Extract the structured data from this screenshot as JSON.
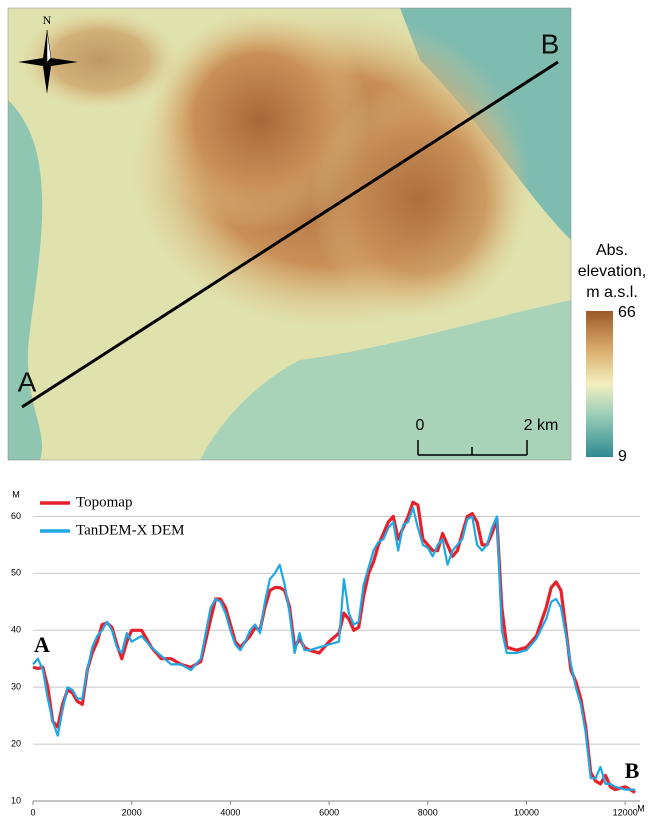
{
  "map": {
    "north": "N",
    "point_a": "A",
    "point_b": "B",
    "legend_title": [
      "Abs.",
      "elevation,",
      "m a.s.l."
    ],
    "legend_max": "66",
    "legend_min": "9",
    "scale_labels": [
      "0",
      "2 km"
    ]
  },
  "chart_data": {
    "type": "line",
    "x": [
      0,
      100,
      200,
      300,
      400,
      500,
      600,
      700,
      800,
      900,
      1000,
      1100,
      1200,
      1300,
      1400,
      1500,
      1600,
      1700,
      1800,
      1900,
      2000,
      2200,
      2400,
      2600,
      2800,
      3000,
      3200,
      3400,
      3600,
      3700,
      3800,
      3900,
      4000,
      4100,
      4200,
      4300,
      4400,
      4500,
      4600,
      4700,
      4800,
      4900,
      5000,
      5100,
      5200,
      5300,
      5400,
      5500,
      5600,
      5800,
      6000,
      6200,
      6300,
      6400,
      6500,
      6600,
      6700,
      6800,
      6900,
      7000,
      7100,
      7200,
      7300,
      7400,
      7500,
      7600,
      7700,
      7800,
      7900,
      8000,
      8100,
      8200,
      8300,
      8400,
      8500,
      8600,
      8700,
      8800,
      8900,
      9000,
      9100,
      9200,
      9300,
      9400,
      9500,
      9600,
      9800,
      10000,
      10200,
      10400,
      10500,
      10600,
      10700,
      10800,
      10900,
      11000,
      11100,
      11200,
      11300,
      11400,
      11500,
      11600,
      11700,
      11800,
      12000,
      12200
    ],
    "series": [
      {
        "name": "Topomap",
        "color": "#e8202a",
        "values": [
          33.5,
          33.3,
          33.5,
          30,
          24,
          23,
          27,
          29.5,
          29,
          27.5,
          27,
          33,
          36,
          38,
          41,
          41.3,
          40.5,
          37.5,
          35,
          38,
          40,
          40,
          37,
          35,
          35,
          34,
          33.5,
          34.5,
          42,
          45.5,
          45.5,
          44,
          41,
          38,
          37,
          38,
          39,
          40.5,
          40,
          44,
          47,
          47.5,
          47.5,
          47,
          44,
          37,
          38.5,
          37,
          36.5,
          36,
          38,
          39.5,
          43,
          42,
          40,
          40.5,
          46,
          50,
          52,
          55,
          57,
          59,
          60,
          56,
          58,
          60,
          62.5,
          62,
          56,
          55,
          54,
          54,
          57,
          55,
          53,
          54,
          57,
          60,
          60.5,
          59,
          55,
          55,
          57,
          59.5,
          44,
          37,
          36.5,
          37,
          39,
          44,
          47.5,
          48.5,
          47,
          40,
          33,
          31,
          28,
          23,
          15,
          13.5,
          13,
          14.5,
          12.5,
          12,
          12.5,
          11.5
        ]
      },
      {
        "name": "TanDEM-X DEM",
        "color": "#1ea8e6",
        "values": [
          34,
          35,
          33,
          28,
          24,
          21.5,
          26,
          30,
          29.5,
          28,
          28,
          33,
          37,
          39,
          40,
          41.5,
          40,
          37,
          36,
          39.5,
          38,
          39,
          37,
          35.5,
          34,
          34,
          33,
          35,
          44,
          45.5,
          45,
          43,
          40,
          37.5,
          36.5,
          38,
          40,
          41,
          39.5,
          45,
          49,
          50,
          51.5,
          48,
          43,
          36,
          39.5,
          36.5,
          36.5,
          37,
          37.5,
          38,
          49,
          43,
          41,
          41.5,
          48,
          51,
          54,
          55.5,
          56,
          58,
          59,
          54,
          58.5,
          59,
          61.5,
          58,
          55,
          54.5,
          53,
          55,
          56,
          51.5,
          54,
          55,
          56,
          59.5,
          60,
          55,
          54,
          55,
          58,
          60,
          40,
          36,
          36,
          36.5,
          38.5,
          42,
          45,
          45.5,
          44,
          39,
          34,
          30,
          27,
          22,
          14,
          14,
          16,
          13,
          13,
          12.5,
          12,
          12
        ]
      }
    ],
    "xlim": [
      0,
      12300
    ],
    "xticks": [
      0,
      2000,
      4000,
      6000,
      8000,
      10000,
      12000
    ],
    "ylim": [
      10,
      65
    ],
    "yticks": [
      10,
      20,
      30,
      40,
      50,
      60
    ],
    "x_label": "M",
    "y_label": "M",
    "grid": true,
    "annotations": [
      "A",
      "B"
    ]
  }
}
